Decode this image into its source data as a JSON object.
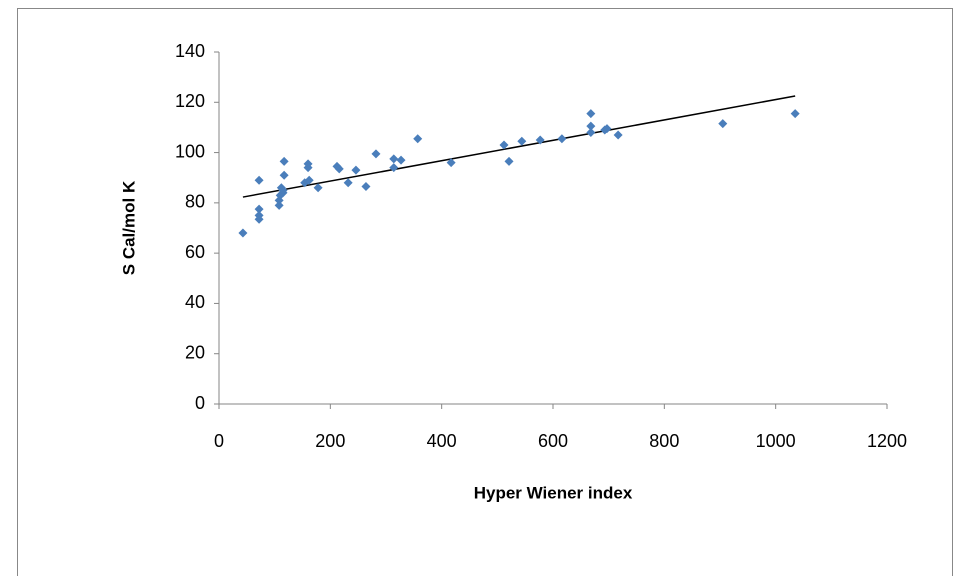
{
  "chart_data": {
    "type": "scatter",
    "x_label": "Hyper Wiener index",
    "y_label": "S Cal/mol K",
    "series": [
      {
        "color": "#4a7ebb",
        "x": [
          43,
          72,
          72,
          72,
          72,
          108,
          108,
          110,
          112,
          115,
          117,
          117,
          115,
          154,
          160,
          160,
          162,
          178,
          212,
          216,
          232,
          246,
          264,
          282,
          314,
          314,
          327,
          357,
          417,
          512,
          521,
          544,
          577,
          616,
          668,
          668,
          668,
          693,
          697,
          717,
          905,
          1035
        ],
        "values": [
          68,
          89,
          77.5,
          75,
          73.5,
          81,
          79,
          83,
          86,
          84,
          91,
          96.5,
          85,
          88,
          94,
          95.5,
          89,
          86,
          94.5,
          93.5,
          88,
          93,
          86.5,
          99.5,
          97.5,
          94,
          97,
          105.5,
          96,
          103,
          96.5,
          104.5,
          105,
          105.5,
          115.5,
          110.5,
          108,
          109,
          109.5,
          107,
          111.5,
          115.5
        ]
      }
    ],
    "trendline": {
      "color": "#000000",
      "x": [
        43,
        1035
      ],
      "values": [
        82.3,
        122.5
      ]
    },
    "xlim": [
      0,
      1200
    ],
    "xticks": [
      0,
      200,
      400,
      600,
      800,
      1000,
      1200
    ],
    "ylim": [
      0,
      140
    ],
    "yticks": [
      0,
      20,
      40,
      60,
      80,
      100,
      120,
      140
    ]
  }
}
